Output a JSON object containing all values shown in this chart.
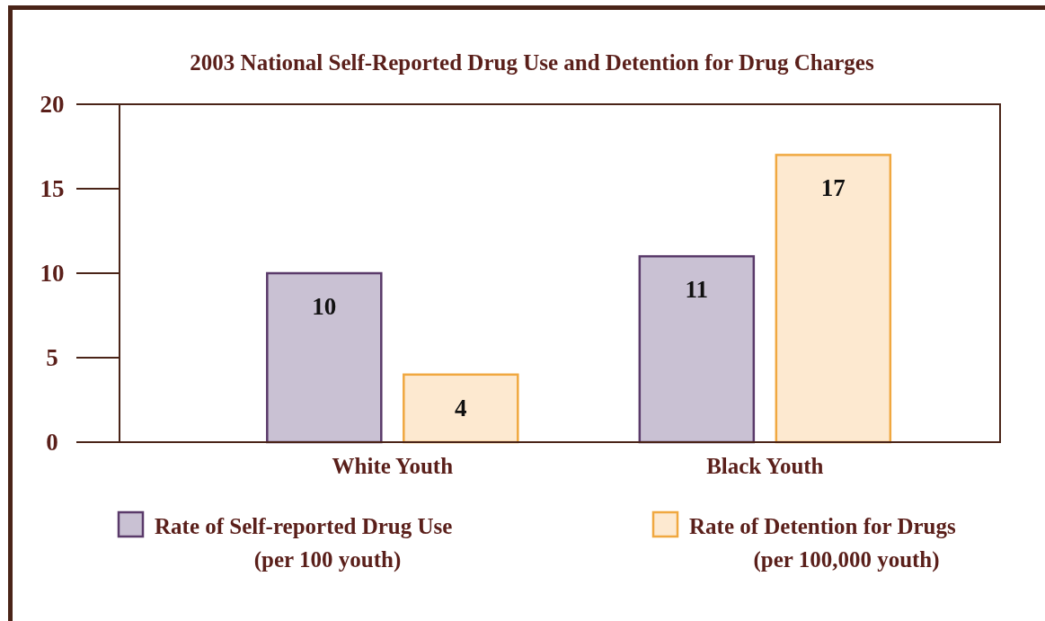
{
  "chart_data": {
    "type": "bar",
    "title": "2003 National Self-Reported Drug Use and Detention for Drug Charges",
    "categories": [
      "White Youth",
      "Black Youth"
    ],
    "series": [
      {
        "name": "Rate of Self-reported Drug Use (per 100 youth)",
        "color": "#c9c1d3",
        "values": [
          10,
          11
        ]
      },
      {
        "name": "Rate of Detention for Drugs (per 100,000 youth)",
        "color": "#fde9d0",
        "values": [
          4,
          17
        ]
      }
    ],
    "ylim": [
      0,
      20
    ],
    "yticks": [
      0,
      5,
      10,
      15,
      20
    ],
    "data_labels": true,
    "legend": "bottom"
  }
}
